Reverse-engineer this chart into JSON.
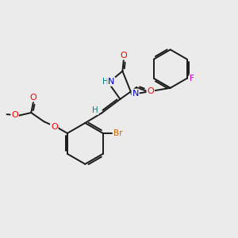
{
  "bg_color": "#ebebeb",
  "bond_color": "#1a1a1a",
  "bond_width": 1.4,
  "atom_colors": {
    "O": "#ff0000",
    "N": "#0000cc",
    "Br": "#cc6600",
    "F": "#cc00cc",
    "H": "#008080",
    "C": "#1a1a1a"
  },
  "figsize": [
    3.0,
    3.0
  ],
  "dpi": 100
}
